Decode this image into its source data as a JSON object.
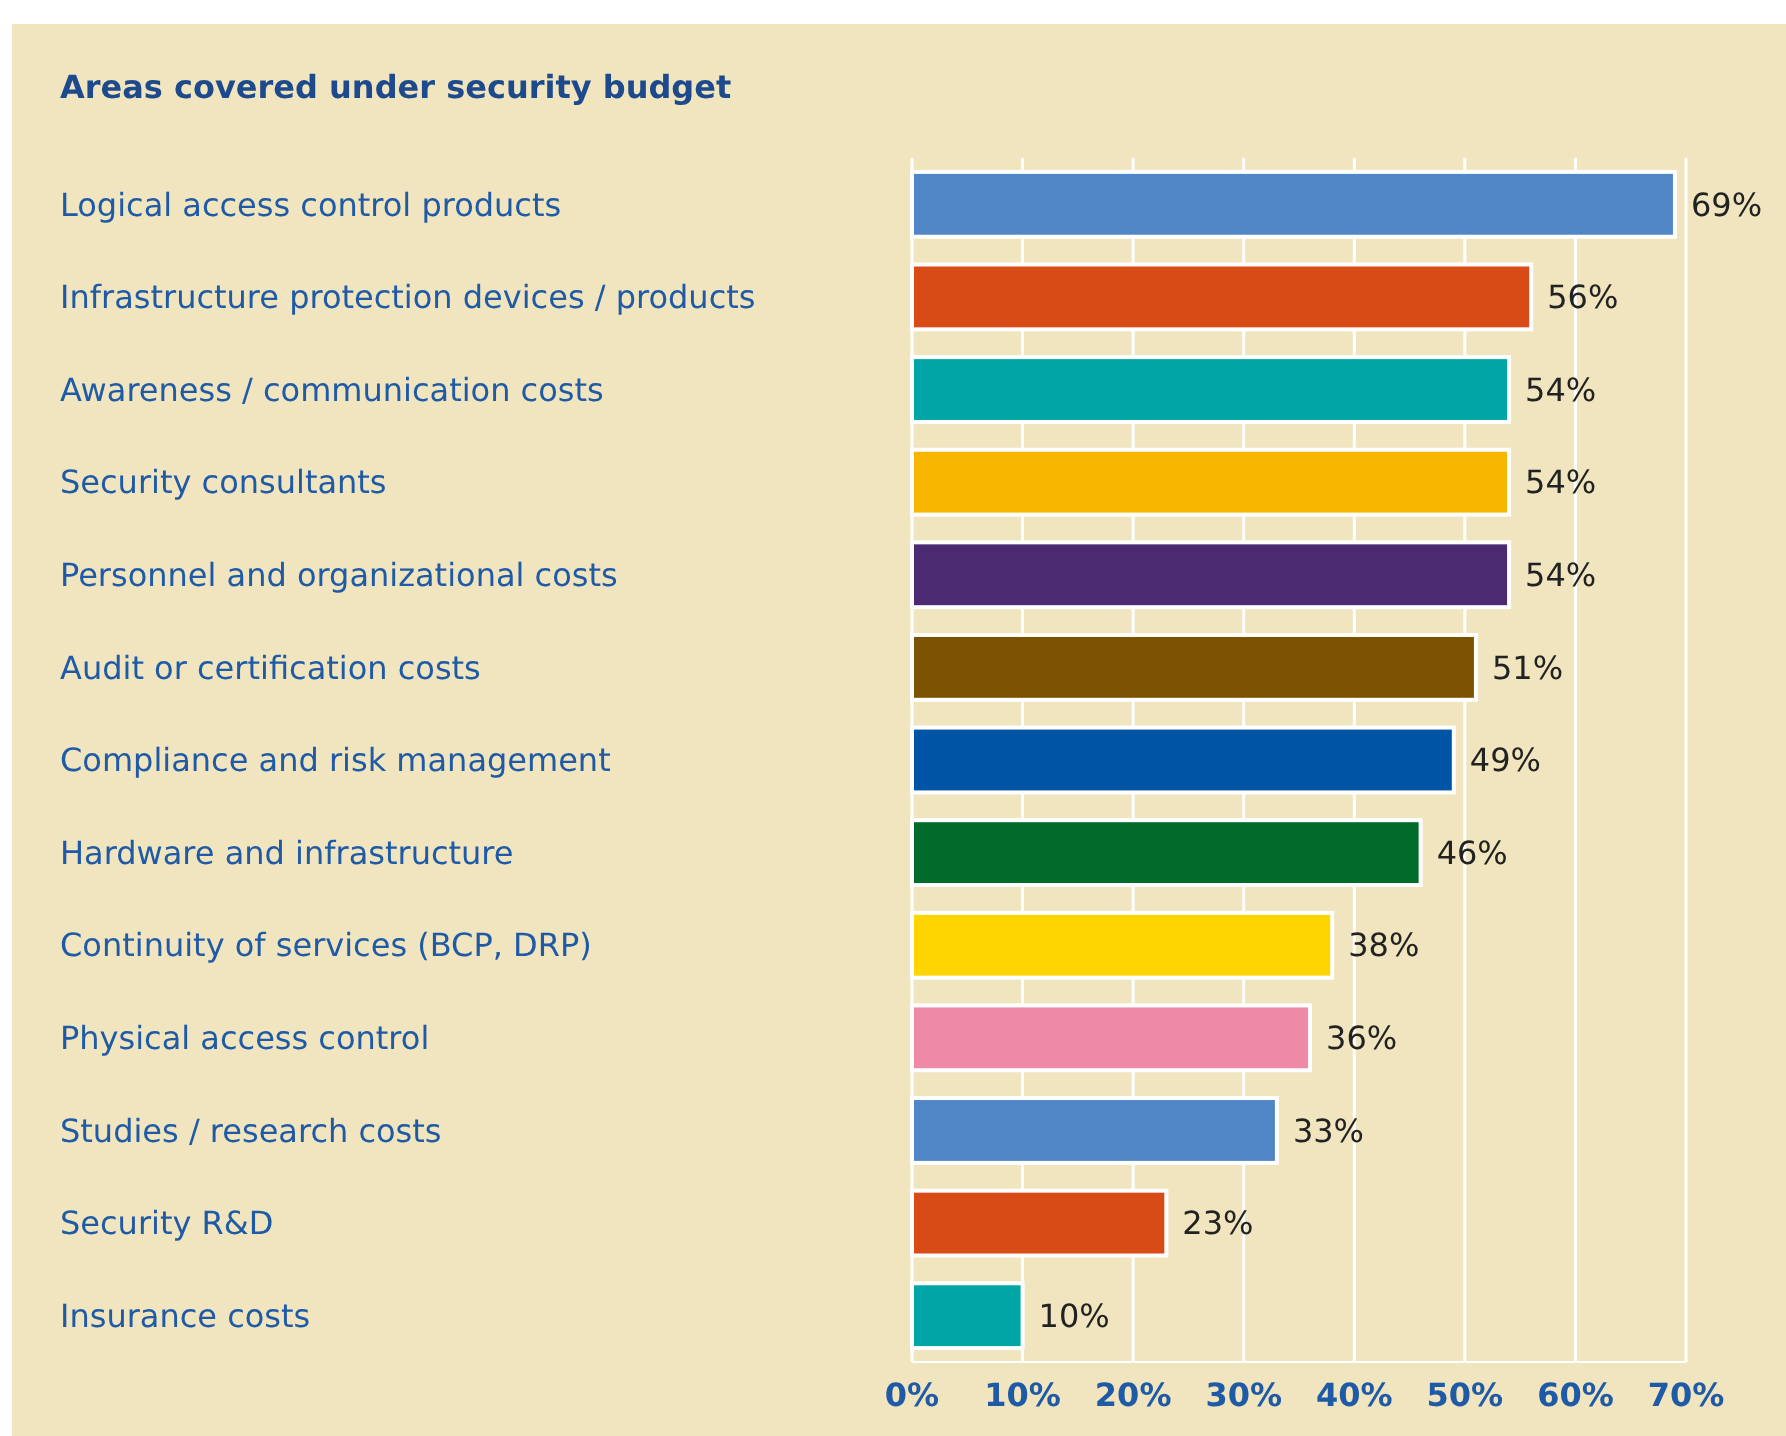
{
  "chart_data": {
    "type": "bar",
    "orientation": "horizontal",
    "title": "Areas covered under security budget",
    "categories": [
      "Logical access control products",
      "Infrastructure protection devices / products",
      "Awareness / communication costs",
      "Security consultants",
      "Personnel and organizational costs",
      "Audit or certification costs",
      "Compliance and risk management",
      "Hardware and infrastructure",
      "Continuity of services (BCP, DRP)",
      "Physical access control",
      "Studies / research costs",
      "Security R&D",
      "Insurance costs"
    ],
    "values": [
      69,
      56,
      54,
      54,
      54,
      51,
      49,
      46,
      38,
      36,
      33,
      23,
      10
    ],
    "value_labels": [
      "69%",
      "56%",
      "54%",
      "54%",
      "54%",
      "51%",
      "49%",
      "46%",
      "38%",
      "36%",
      "33%",
      "23%",
      "10%"
    ],
    "colors": [
      "#4f86c6",
      "#d84b16",
      "#00a6a6",
      "#f7b500",
      "#4b2a72",
      "#7a5200",
      "#0054a6",
      "#006b2b",
      "#ffd500",
      "#ee8aa6",
      "#4f86c6",
      "#d84b16",
      "#00a6a6"
    ],
    "xlim": [
      0,
      70
    ],
    "xticks": [
      {
        "value": 0,
        "label": "0%"
      },
      {
        "value": 10,
        "label": "10%"
      },
      {
        "value": 20,
        "label": "20%"
      },
      {
        "value": 30,
        "label": "30%"
      },
      {
        "value": 40,
        "label": "40%"
      },
      {
        "value": 50,
        "label": "50%"
      },
      {
        "value": 60,
        "label": "60%"
      },
      {
        "value": 70,
        "label": "70%"
      }
    ],
    "grid": "x"
  }
}
